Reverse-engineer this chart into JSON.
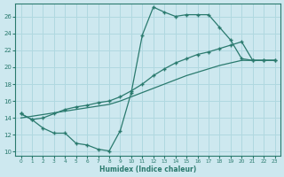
{
  "xlabel": "Humidex (Indice chaleur)",
  "bg_color": "#cde8ef",
  "grid_color": "#b0d8e0",
  "line_color": "#2a7a6e",
  "xlim": [
    -0.5,
    23.5
  ],
  "ylim": [
    9.5,
    27.5
  ],
  "xticks": [
    0,
    1,
    2,
    3,
    4,
    5,
    6,
    7,
    8,
    9,
    10,
    11,
    12,
    13,
    14,
    15,
    16,
    17,
    18,
    19,
    20,
    21,
    22,
    23
  ],
  "yticks": [
    10,
    12,
    14,
    16,
    18,
    20,
    22,
    24,
    26
  ],
  "line1_x": [
    0,
    1,
    2,
    3,
    4,
    5,
    6,
    7,
    8,
    9,
    10,
    11,
    12,
    13,
    14,
    15,
    16,
    17,
    18,
    19,
    20,
    21,
    22,
    23
  ],
  "line1_y": [
    14.5,
    13.8,
    12.8,
    12.2,
    12.2,
    11.0,
    10.8,
    10.3,
    10.1,
    12.5,
    17.0,
    23.8,
    27.1,
    26.5,
    26.0,
    26.2,
    26.2,
    26.2,
    24.7,
    23.2,
    21.0,
    20.8,
    20.8,
    20.8
  ],
  "line2_x": [
    0,
    1,
    2,
    3,
    4,
    5,
    6,
    7,
    8,
    9,
    10,
    11,
    12,
    13,
    14,
    15,
    16,
    17,
    18,
    19,
    20,
    21,
    22,
    23
  ],
  "line2_y": [
    14.5,
    13.8,
    14.0,
    14.5,
    15.0,
    15.3,
    15.5,
    15.8,
    16.0,
    16.5,
    17.2,
    18.0,
    19.0,
    19.8,
    20.5,
    21.0,
    21.5,
    21.8,
    22.2,
    22.6,
    23.0,
    20.8,
    20.8,
    20.8
  ],
  "line3_x": [
    0,
    1,
    2,
    3,
    4,
    5,
    6,
    7,
    8,
    9,
    10,
    11,
    12,
    13,
    14,
    15,
    16,
    17,
    18,
    19,
    20,
    21,
    22,
    23
  ],
  "line3_y": [
    14.0,
    14.2,
    14.4,
    14.6,
    14.8,
    15.0,
    15.2,
    15.4,
    15.6,
    16.0,
    16.5,
    17.0,
    17.5,
    18.0,
    18.5,
    19.0,
    19.4,
    19.8,
    20.2,
    20.5,
    20.8,
    20.8,
    20.8,
    20.8
  ]
}
